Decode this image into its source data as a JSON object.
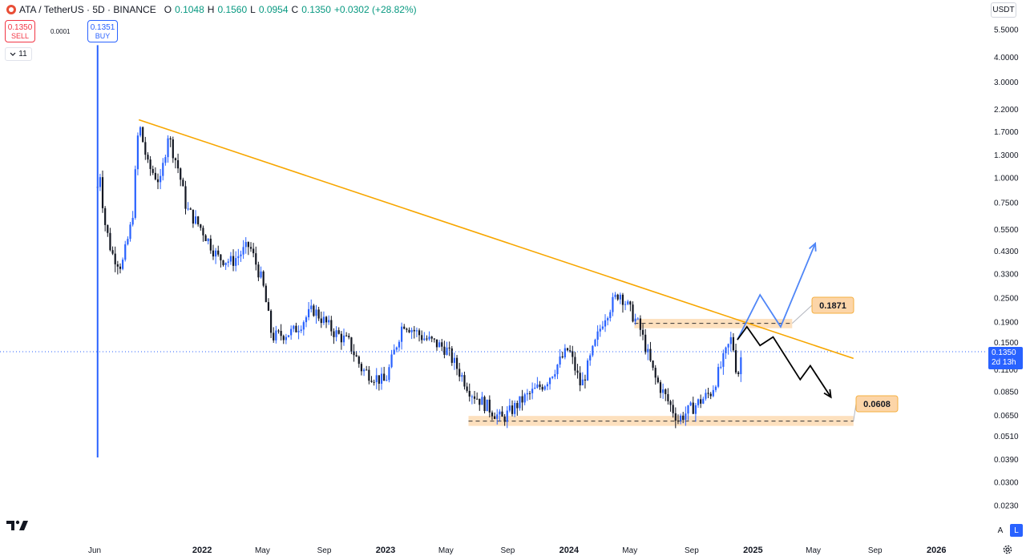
{
  "header": {
    "title": "ATA / TetherUS · 5D · BINANCE",
    "open_label": "O",
    "open": "0.1048",
    "high_label": "H",
    "high": "0.1560",
    "low_label": "L",
    "low": "0.0954",
    "close_label": "C",
    "close": "0.1350",
    "change": "+0.0302 (+28.82%)"
  },
  "trade": {
    "sell_price": "0.1350",
    "sell_label": "SELL",
    "spread": "0.0001",
    "buy_price": "0.1351",
    "buy_label": "BUY"
  },
  "indicators_count": "11",
  "currency": "USDT",
  "last_price": {
    "value": "0.1350",
    "countdown": "2d 13h"
  },
  "scale_buttons": {
    "auto": "A",
    "log": "L"
  },
  "colors": {
    "up": "#089981",
    "down": "#131722",
    "up_candle": "#2962ff",
    "trendline": "#f7a600",
    "zone": "#fcd5a8",
    "bull_path": "#4f86f7",
    "bear_path": "#000000",
    "sell": "#f23645",
    "buy": "#2962ff"
  },
  "icons": [
    "symbol-logo-icon",
    "chevron-down-icon",
    "tradingview-logo-icon",
    "settings-gear-icon"
  ],
  "chart_data": {
    "type": "candlestick",
    "x_axis_labels": [
      "Jun",
      "2022",
      "May",
      "Sep",
      "2023",
      "May",
      "Sep",
      "2024",
      "May",
      "Sep",
      "2025",
      "May",
      "Sep",
      "2026"
    ],
    "y_axis_labels": [
      "5.5000",
      "4.0000",
      "3.0000",
      "2.2000",
      "1.7000",
      "1.3000",
      "1.0000",
      "0.7500",
      "0.5500",
      "0.4300",
      "0.3300",
      "0.2500",
      "0.1900",
      "0.1500",
      "0.1100",
      "0.0850",
      "0.0650",
      "0.0510",
      "0.0390",
      "0.0300",
      "0.0230"
    ],
    "y_scale": "log",
    "ylim": [
      0.0205,
      6.2
    ],
    "series_price_path": [
      {
        "x": "2021-06-07",
        "y": 0.9
      },
      {
        "x": "2021-06-12",
        "y": 1.05
      },
      {
        "x": "2021-06-20",
        "y": 0.62
      },
      {
        "x": "2021-07-05",
        "y": 0.42
      },
      {
        "x": "2021-07-25",
        "y": 0.36
      },
      {
        "x": "2021-08-15",
        "y": 0.62
      },
      {
        "x": "2021-08-28",
        "y": 1.9
      },
      {
        "x": "2021-09-15",
        "y": 1.15
      },
      {
        "x": "2021-10-10",
        "y": 0.95
      },
      {
        "x": "2021-10-25",
        "y": 1.65
      },
      {
        "x": "2021-11-15",
        "y": 1.1
      },
      {
        "x": "2021-12-01",
        "y": 0.7
      },
      {
        "x": "2022-01-01",
        "y": 0.55
      },
      {
        "x": "2022-02-01",
        "y": 0.4
      },
      {
        "x": "2022-03-01",
        "y": 0.38
      },
      {
        "x": "2022-04-05",
        "y": 0.46
      },
      {
        "x": "2022-05-01",
        "y": 0.3
      },
      {
        "x": "2022-05-20",
        "y": 0.16
      },
      {
        "x": "2022-07-01",
        "y": 0.17
      },
      {
        "x": "2022-08-10",
        "y": 0.22
      },
      {
        "x": "2022-09-20",
        "y": 0.17
      },
      {
        "x": "2022-10-20",
        "y": 0.15
      },
      {
        "x": "2022-11-15",
        "y": 0.11
      },
      {
        "x": "2022-12-31",
        "y": 0.095
      },
      {
        "x": "2023-02-05",
        "y": 0.19
      },
      {
        "x": "2023-03-15",
        "y": 0.16
      },
      {
        "x": "2023-05-01",
        "y": 0.14
      },
      {
        "x": "2023-06-20",
        "y": 0.085
      },
      {
        "x": "2023-08-20",
        "y": 0.062
      },
      {
        "x": "2023-10-01",
        "y": 0.078
      },
      {
        "x": "2023-11-15",
        "y": 0.095
      },
      {
        "x": "2023-12-31",
        "y": 0.14
      },
      {
        "x": "2024-01-25",
        "y": 0.09
      },
      {
        "x": "2024-03-10",
        "y": 0.2
      },
      {
        "x": "2024-04-10",
        "y": 0.27
      },
      {
        "x": "2024-05-20",
        "y": 0.18
      },
      {
        "x": "2024-06-20",
        "y": 0.1
      },
      {
        "x": "2024-08-05",
        "y": 0.062
      },
      {
        "x": "2024-10-10",
        "y": 0.085
      },
      {
        "x": "2024-11-20",
        "y": 0.16
      },
      {
        "x": "2024-12-01",
        "y": 0.1
      },
      {
        "x": "2024-12-10",
        "y": 0.135
      }
    ],
    "trendline": [
      {
        "x": "2021-08-28",
        "y": 1.95
      },
      {
        "x": "2025-07-20",
        "y": 0.125
      }
    ],
    "zones": [
      {
        "label": "0.1871",
        "level": 0.1871,
        "low": 0.177,
        "high": 0.197,
        "x_start": "2024-05-10",
        "x_end": "2025-03-20"
      },
      {
        "label": "0.0608",
        "level": 0.0608,
        "low": 0.0575,
        "high": 0.0645,
        "x_start": "2023-06-15",
        "x_end": "2025-07-20"
      }
    ],
    "projection_bull": [
      {
        "x": "2024-12-01",
        "y": 0.155
      },
      {
        "x": "2025-01-15",
        "y": 0.26
      },
      {
        "x": "2025-02-25",
        "y": 0.18
      },
      {
        "x": "2025-05-05",
        "y": 0.47
      }
    ],
    "projection_bear": [
      {
        "x": "2024-12-01",
        "y": 0.155
      },
      {
        "x": "2024-12-20",
        "y": 0.18
      },
      {
        "x": "2025-01-15",
        "y": 0.145
      },
      {
        "x": "2025-02-10",
        "y": 0.16
      },
      {
        "x": "2025-04-05",
        "y": 0.098
      },
      {
        "x": "2025-04-25",
        "y": 0.115
      },
      {
        "x": "2025-06-05",
        "y": 0.08
      }
    ],
    "spike": {
      "x": "2021-06-07",
      "high": 4.6,
      "low": 0.04
    },
    "last_price_line": 0.135,
    "grid": false
  }
}
